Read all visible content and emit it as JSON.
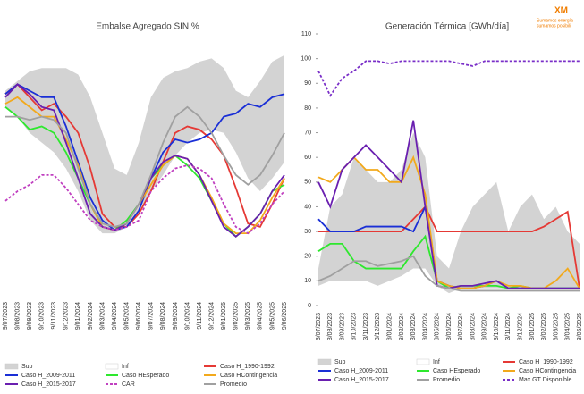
{
  "logo": {
    "mark": "XM",
    "line1": "Sumamos energía",
    "line2": "sumamos posibili"
  },
  "chart_data": [
    {
      "type": "line",
      "title": "Embalse Agregado SIN %",
      "categories": [
        "9/07/2023",
        "9/08/2023",
        "9/09/2023",
        "9/10/2023",
        "9/11/2023",
        "9/12/2023",
        "9/01/2024",
        "9/02/2024",
        "9/03/2024",
        "9/04/2024",
        "9/05/2024",
        "9/06/2024",
        "9/07/2024",
        "9/08/2024",
        "9/09/2024",
        "9/10/2024",
        "9/11/2024",
        "9/12/2024",
        "9/01/2025",
        "9/02/2025",
        "9/03/2025",
        "9/04/2025",
        "9/05/2025",
        "9/06/2025"
      ],
      "ylim": [
        20,
        100
      ],
      "series": [
        {
          "name": "Sup",
          "color": "#d3d3d3",
          "fill": true,
          "values": [
            83,
            86,
            89,
            90,
            90,
            90,
            88,
            81,
            70,
            59,
            57,
            67,
            81,
            87,
            89,
            90,
            92,
            93,
            90,
            83,
            81,
            86,
            92,
            94
          ]
        },
        {
          "name": "Inf",
          "color": "#ffffff",
          "fill": true,
          "values": [
            78,
            75,
            70,
            67,
            64,
            59,
            52,
            43,
            39,
            39,
            41,
            45,
            52,
            57,
            63,
            67,
            70,
            71,
            70,
            64,
            56,
            52,
            56,
            61
          ]
        },
        {
          "name": "Caso H_1990-1992",
          "color": "#e53935",
          "values": [
            82,
            85,
            81,
            77,
            79,
            75,
            70,
            59,
            45,
            41,
            41,
            45,
            52,
            61,
            70,
            72,
            71,
            68,
            63,
            53,
            42,
            41,
            48,
            56
          ]
        },
        {
          "name": "Caso H_2009-2011",
          "color": "#1a2fd6",
          "values": [
            82,
            85,
            83,
            81,
            81,
            72,
            61,
            50,
            43,
            40,
            41,
            46,
            56,
            64,
            68,
            67,
            68,
            70,
            75,
            76,
            79,
            78,
            81,
            82
          ]
        },
        {
          "name": "Caso HEsperado",
          "color": "#2ee82e",
          "values": [
            78,
            75,
            71,
            72,
            70,
            64,
            56,
            48,
            41,
            40,
            43,
            48,
            56,
            60,
            63,
            60,
            56,
            49,
            42,
            38,
            41,
            45,
            52,
            54
          ]
        },
        {
          "name": "Caso HContingencia",
          "color": "#f2a91c",
          "values": [
            79,
            81,
            78,
            75,
            75,
            68,
            60,
            48,
            41,
            40,
            42,
            48,
            54,
            60,
            63,
            62,
            57,
            50,
            42,
            39,
            39,
            43,
            50,
            56
          ]
        },
        {
          "name": "Caso H_2015-2017",
          "color": "#6a1fb0",
          "values": [
            81,
            85,
            82,
            78,
            77,
            67,
            56,
            45,
            41,
            40,
            42,
            48,
            56,
            61,
            63,
            62,
            57,
            49,
            41,
            38,
            41,
            45,
            52,
            57
          ]
        },
        {
          "name": "CAR",
          "color": "#c040c0",
          "dash": true,
          "values": [
            49,
            52,
            54,
            57,
            57,
            53,
            48,
            43,
            41,
            40,
            41,
            43,
            52,
            56,
            59,
            60,
            59,
            56,
            48,
            41,
            39,
            42,
            48,
            52
          ]
        },
        {
          "name": "Promedio",
          "color": "#a0a0a0",
          "values": [
            75,
            75,
            74,
            75,
            74,
            70,
            59,
            48,
            42,
            41,
            42,
            48,
            57,
            67,
            75,
            78,
            75,
            70,
            63,
            57,
            54,
            57,
            63,
            70
          ]
        }
      ]
    },
    {
      "type": "line",
      "title": "Generación Térmica [GWh/día]",
      "categories": [
        "3/07/2023",
        "3/08/2023",
        "3/09/2023",
        "3/10/2023",
        "3/11/2023",
        "3/12/2023",
        "3/01/2024",
        "3/02/2024",
        "3/03/2024",
        "3/04/2024",
        "3/05/2024",
        "3/06/2024",
        "3/07/2024",
        "3/08/2024",
        "3/09/2024",
        "3/10/2024",
        "3/11/2024",
        "3/12/2024",
        "3/01/2025",
        "3/02/2025",
        "3/03/2025",
        "3/04/2025",
        "3/05/2025"
      ],
      "ylim": [
        0,
        110
      ],
      "yticks": [
        0,
        10,
        20,
        30,
        40,
        50,
        60,
        70,
        80,
        90,
        100,
        110
      ],
      "series": [
        {
          "name": "Sup",
          "color": "#d3d3d3",
          "fill": true,
          "values": [
            15,
            40,
            45,
            60,
            55,
            50,
            50,
            55,
            70,
            60,
            20,
            15,
            30,
            40,
            45,
            50,
            30,
            40,
            45,
            35,
            40,
            30,
            25
          ]
        },
        {
          "name": "Inf",
          "color": "#ffffff",
          "fill": true,
          "values": [
            8,
            10,
            10,
            10,
            10,
            8,
            10,
            12,
            15,
            15,
            8,
            5,
            7,
            7,
            7,
            7,
            7,
            7,
            7,
            7,
            7,
            7,
            7
          ]
        },
        {
          "name": "Caso H_1990-1992",
          "color": "#e53935",
          "values": [
            30,
            30,
            30,
            30,
            30,
            30,
            30,
            30,
            35,
            40,
            30,
            30,
            30,
            30,
            30,
            30,
            30,
            30,
            30,
            32,
            35,
            38,
            7
          ]
        },
        {
          "name": "Caso H_2009-2011",
          "color": "#1a2fd6",
          "values": [
            35,
            30,
            30,
            30,
            32,
            32,
            32,
            32,
            30,
            40,
            10,
            8,
            7,
            7,
            8,
            10,
            7,
            7,
            7,
            7,
            7,
            7,
            7
          ]
        },
        {
          "name": "Caso HEsperado",
          "color": "#2ee82e",
          "values": [
            22,
            25,
            25,
            18,
            15,
            15,
            15,
            15,
            22,
            28,
            10,
            7,
            8,
            8,
            8,
            8,
            7,
            8,
            7,
            7,
            7,
            7,
            7
          ]
        },
        {
          "name": "Caso HContingencia",
          "color": "#f2a91c",
          "values": [
            52,
            50,
            55,
            60,
            55,
            55,
            50,
            50,
            60,
            45,
            10,
            8,
            7,
            7,
            8,
            10,
            8,
            8,
            7,
            7,
            10,
            15,
            7
          ]
        },
        {
          "name": "Caso H_2015-2017",
          "color": "#6a1fb0",
          "values": [
            50,
            40,
            55,
            60,
            65,
            60,
            55,
            50,
            75,
            40,
            8,
            7,
            8,
            8,
            9,
            10,
            7,
            7,
            7,
            7,
            7,
            7,
            7
          ]
        },
        {
          "name": "Promedio",
          "color": "#a0a0a0",
          "values": [
            10,
            12,
            15,
            18,
            18,
            16,
            17,
            18,
            20,
            12,
            8,
            7,
            6,
            6,
            6,
            6,
            6,
            6,
            6,
            6,
            6,
            6,
            6
          ]
        },
        {
          "name": "Max GT Disponible",
          "color": "#7a2fc8",
          "dash": true,
          "values": [
            95,
            85,
            92,
            95,
            99,
            99,
            98,
            99,
            99,
            99,
            99,
            99,
            98,
            97,
            99,
            99,
            99,
            99,
            99,
            99,
            99,
            99,
            99
          ]
        }
      ]
    }
  ]
}
